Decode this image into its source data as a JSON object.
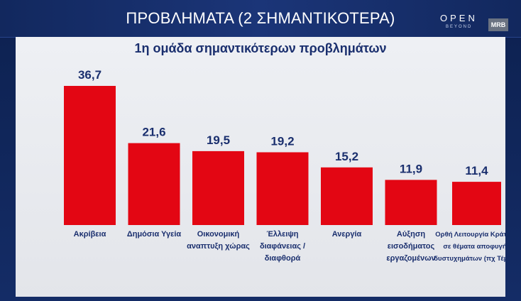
{
  "header": {
    "title": "ΠΡΟΒΛΗΜΑΤΑ (2 ΣΗΜΑΝΤΙΚΟΤΕΡΑ)"
  },
  "logos": {
    "open_main": "OPEN",
    "open_sub": "BEYOND",
    "mrb": "MRB"
  },
  "chart_data": {
    "type": "bar",
    "title": "1η ομάδα σημαντικότερων προβλημάτων",
    "xlabel": "",
    "ylabel": "",
    "ylim": [
      0,
      40
    ],
    "bar_color": "#e30613",
    "categories": [
      [
        "Ακρίβεια"
      ],
      [
        "Δημόσια Υγεία"
      ],
      [
        "Οικονομική",
        "αναπτυξη χώρας"
      ],
      [
        "Έλλειψη",
        "διαφάνειας /",
        "διαφθορά"
      ],
      [
        "Ανεργία"
      ],
      [
        "Αύξηση",
        "εισοδήματος",
        "εργαζομένων"
      ],
      [
        "Ορθή Λειτουργία Κράτους",
        "σε θέματα αποφυγής",
        "δυστυχημάτων (πχ Τέμπη)"
      ]
    ],
    "values": [
      36.7,
      21.6,
      19.5,
      19.2,
      15.2,
      11.9,
      11.4
    ],
    "value_labels": [
      "36,7",
      "21,6",
      "19,5",
      "19,2",
      "15,2",
      "11,9",
      "11,4"
    ]
  }
}
